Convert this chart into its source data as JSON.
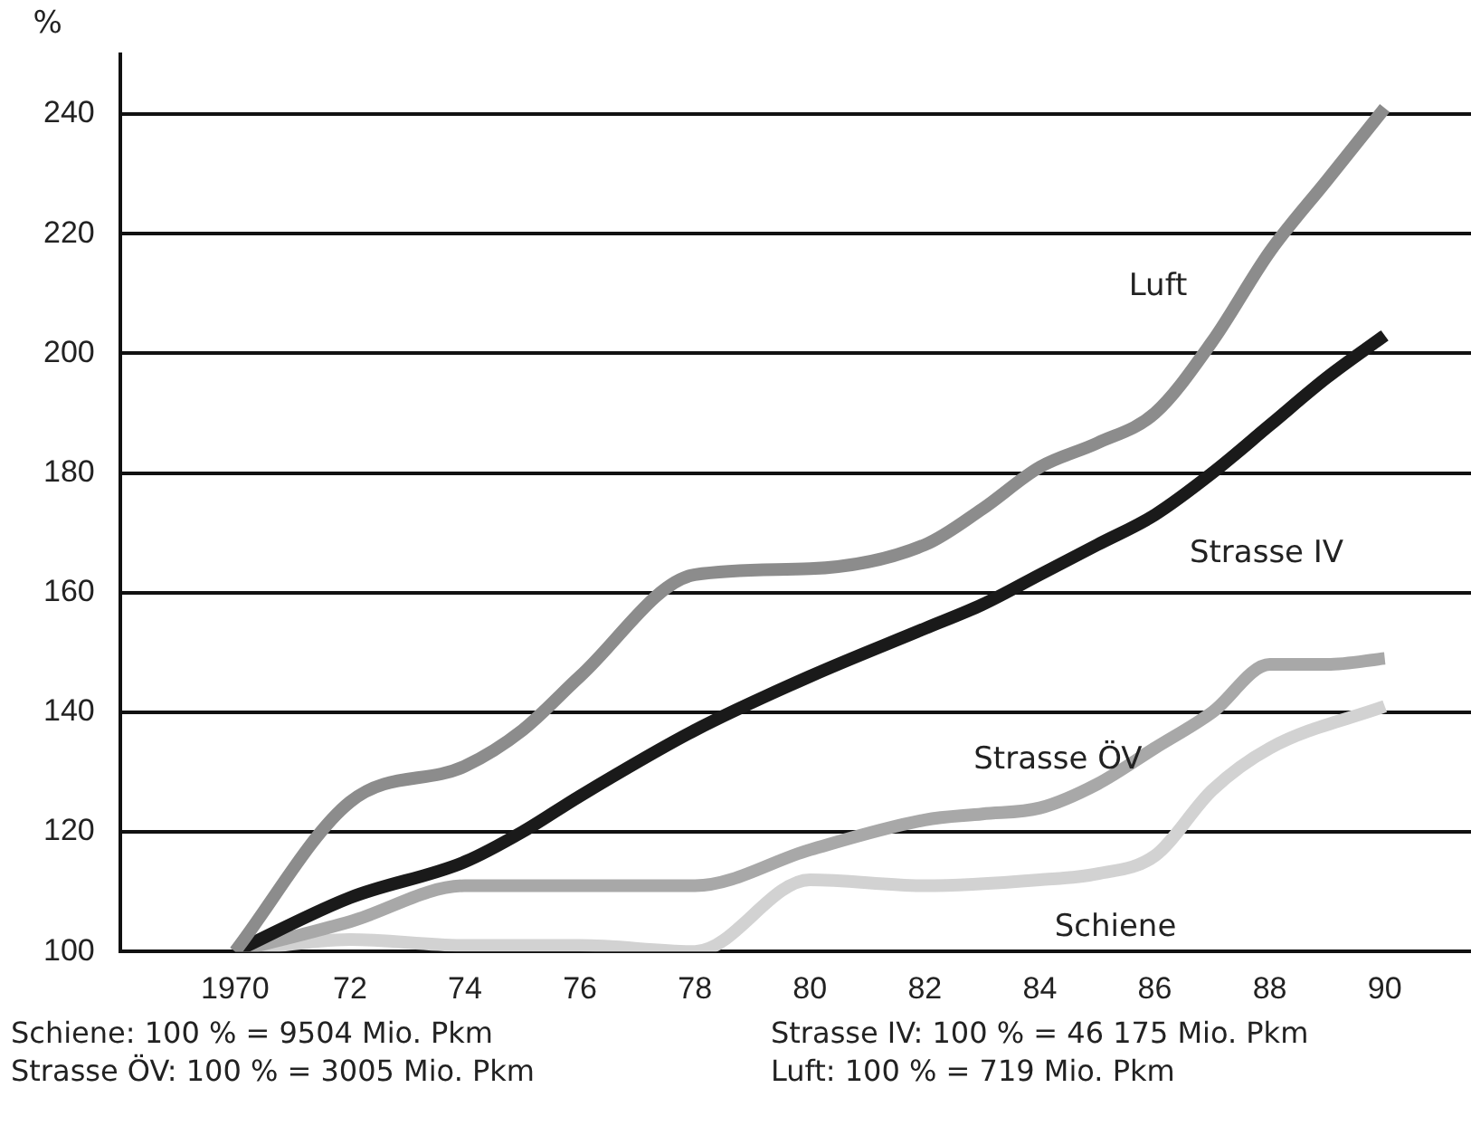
{
  "chart_data": {
    "type": "line",
    "ylabel": "%",
    "x": [
      1970,
      1972,
      1974,
      1975,
      1976,
      1978,
      1980,
      1982,
      1983,
      1984,
      1985,
      1986,
      1987,
      1988,
      1989,
      1990
    ],
    "series": [
      {
        "name": "Luft",
        "color": "#8c8c8c",
        "values": [
          100,
          125,
          131,
          137,
          146,
          163,
          164,
          168,
          174,
          181,
          185,
          190,
          202,
          217,
          229,
          241
        ]
      },
      {
        "name": "Strasse IV",
        "color": "#1a1a1a",
        "values": [
          100,
          109,
          115,
          120,
          126,
          137,
          146,
          154,
          158,
          163,
          168,
          173,
          180,
          188,
          196,
          203
        ]
      },
      {
        "name": "Strasse ÖV",
        "color": "#a8a8a8",
        "values": [
          100,
          105,
          111,
          111,
          111,
          111,
          117,
          122,
          123,
          124,
          128,
          134,
          140,
          148,
          148,
          149
        ]
      },
      {
        "name": "Schiene",
        "color": "#d2d2d2",
        "x": [
          1970,
          1972,
          1974,
          1976,
          1978,
          1980,
          1982,
          1984,
          1985,
          1986,
          1987,
          1988,
          1990
        ],
        "values": [
          100,
          102,
          101,
          101,
          100,
          112,
          111,
          112,
          113,
          116,
          127,
          134,
          141
        ]
      }
    ],
    "xlim": [
      1968,
      1991.5
    ],
    "ylim": [
      100,
      250
    ],
    "xticks": [
      {
        "value": 1970,
        "label": "1970"
      },
      {
        "value": 1972,
        "label": "72"
      },
      {
        "value": 1974,
        "label": "74"
      },
      {
        "value": 1976,
        "label": "76"
      },
      {
        "value": 1978,
        "label": "78"
      },
      {
        "value": 1980,
        "label": "80"
      },
      {
        "value": 1982,
        "label": "82"
      },
      {
        "value": 1984,
        "label": "84"
      },
      {
        "value": 1986,
        "label": "86"
      },
      {
        "value": 1988,
        "label": "88"
      },
      {
        "value": 1990,
        "label": "90"
      }
    ],
    "yticks": [
      100,
      120,
      140,
      160,
      180,
      200,
      220,
      240
    ],
    "grid": "y",
    "legend": false,
    "marker": "none",
    "line_style": "solid",
    "annotations": [
      "Schiene: 100 % = 9504 Mio. Pkm",
      "Strasse IV: 100 % = 46 175 Mio. Pkm",
      "Strasse ÖV: 100 % = 3005 Mio. Pkm",
      "Luft: 100 % = 719 Mio. Pkm"
    ]
  }
}
